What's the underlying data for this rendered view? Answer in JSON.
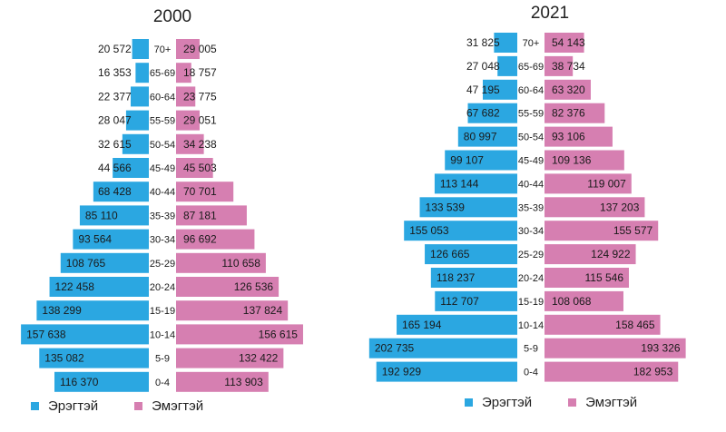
{
  "chart_data": [
    {
      "type": "bar",
      "subtype": "population-pyramid",
      "title": "2000",
      "categories": [
        "70+",
        "65-69",
        "60-64",
        "55-59",
        "50-54",
        "45-49",
        "40-44",
        "35-39",
        "30-34",
        "25-29",
        "20-24",
        "15-19",
        "10-14",
        "5-9",
        "0-4"
      ],
      "series": [
        {
          "name": "Эрэгтэй",
          "color": "#2BA7E1",
          "values": [
            20572,
            16353,
            22377,
            28047,
            32615,
            44566,
            68428,
            85110,
            93564,
            108765,
            122458,
            138299,
            157638,
            135082,
            116370
          ],
          "labels": [
            "20 572",
            "16 353",
            "22 377",
            "28 047",
            "32 615",
            "44 566",
            "68 428",
            "85 110",
            "93 564",
            "108 765",
            "122 458",
            "138 299",
            "157 638",
            "135 082",
            "116 370"
          ]
        },
        {
          "name": "Эмэгтэй",
          "color": "#D67FB1",
          "values": [
            29005,
            18757,
            23775,
            29051,
            34238,
            45503,
            70701,
            87181,
            96692,
            110658,
            126536,
            137824,
            156615,
            132422,
            113903
          ],
          "labels": [
            "29 005",
            "18 757",
            "23 775",
            "29 051",
            "34 238",
            "45 503",
            "70 701",
            "87 181",
            "96 692",
            "110 658",
            "126 536",
            "137 824",
            "156 615",
            "132 422",
            "113 903"
          ]
        }
      ]
    },
    {
      "type": "bar",
      "subtype": "population-pyramid",
      "title": "2021",
      "categories": [
        "70+",
        "65-69",
        "60-64",
        "55-59",
        "50-54",
        "45-49",
        "40-44",
        "35-39",
        "30-34",
        "25-29",
        "20-24",
        "15-19",
        "10-14",
        "5-9",
        "0-4"
      ],
      "series": [
        {
          "name": "Эрэгтэй",
          "color": "#2BA7E1",
          "values": [
            31825,
            27048,
            47195,
            67682,
            80997,
            99107,
            113144,
            133539,
            155053,
            126665,
            118237,
            112707,
            165194,
            202735,
            192929
          ],
          "labels": [
            "31 825",
            "27 048",
            "47 195",
            "67 682",
            "80 997",
            "99 107",
            "113 144",
            "133 539",
            "155 053",
            "126 665",
            "118 237",
            "112 707",
            "165 194",
            "202 735",
            "192 929"
          ]
        },
        {
          "name": "Эмэгтэй",
          "color": "#D67FB1",
          "values": [
            54143,
            38734,
            63320,
            82376,
            93106,
            109136,
            119007,
            137203,
            155577,
            124922,
            115546,
            108068,
            158465,
            193326,
            182953
          ],
          "labels": [
            "54 143",
            "38 734",
            "63 320",
            "82 376",
            "93 106",
            "109 136",
            "119 007",
            "137 203",
            "155 577",
            "124 922",
            "115 546",
            "108 068",
            "158 465",
            "193 326",
            "182 953"
          ]
        }
      ]
    }
  ],
  "legend": {
    "male_label": "Эрэгтэй",
    "female_label": "Эмэгтэй",
    "male_color": "#2BA7E1",
    "female_color": "#D67FB1"
  }
}
